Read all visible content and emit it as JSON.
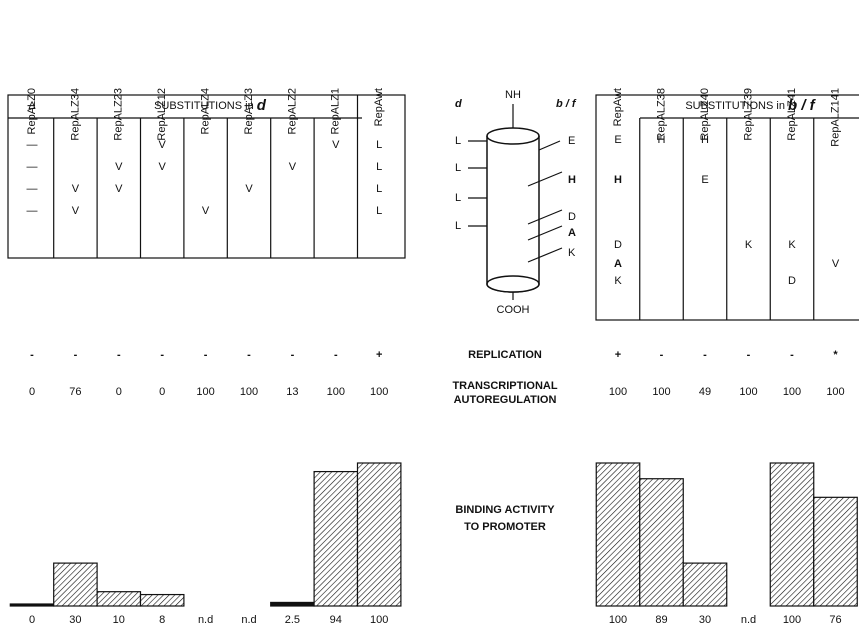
{
  "left_columns": [
    "RepALZ0",
    "RepALZ34",
    "RepALZ23",
    "RepALZ12",
    "RepALZ4",
    "RepALZ3",
    "RepALZ2",
    "RepALZ1",
    "RepAwt"
  ],
  "left_table": {
    "delta": "Δ",
    "header": "SUBSTITUTIONS in ",
    "header_em": "d",
    "cells": [
      [
        "—",
        "—",
        "—",
        "—"
      ],
      [
        null,
        null,
        "V",
        "V"
      ],
      [
        null,
        "V",
        "V",
        null
      ],
      [
        "V",
        "V",
        null,
        null
      ],
      [
        null,
        null,
        null,
        "V"
      ],
      [
        null,
        null,
        "V",
        null
      ],
      [
        null,
        "V",
        null,
        null
      ],
      [
        "V",
        null,
        null,
        null
      ],
      [
        "L",
        "L",
        "L",
        "L"
      ]
    ]
  },
  "right_columns": [
    "RepAwt",
    "RepALZ38",
    "RepALZ40",
    "RepALZ39",
    "RepALZ41",
    "RepALZ141"
  ],
  "right_table": {
    "header": "SUBSTITUTIONS in ",
    "header_em": "b / f",
    "cells": [
      [
        "E",
        "H",
        "D",
        "A",
        "K"
      ],
      [
        "H",
        null,
        null,
        null,
        null
      ],
      [
        "H",
        "E",
        null,
        null,
        null
      ],
      [
        null,
        null,
        "K",
        null,
        null
      ],
      [
        null,
        null,
        "K",
        null,
        "D"
      ],
      [
        null,
        null,
        null,
        "V",
        null
      ]
    ]
  },
  "helix": {
    "nh": "NH",
    "cooh": "COOH",
    "d": "d",
    "bf": "b / f",
    "left": [
      "L",
      "L",
      "L",
      "L"
    ],
    "right": [
      "E",
      "H",
      "D",
      "A",
      "K"
    ]
  },
  "replication": {
    "label": "REPLICATION",
    "left": [
      "-",
      "-",
      "-",
      "-",
      "-",
      "-",
      "-",
      "-",
      "+"
    ],
    "right": [
      "+",
      "-",
      "-",
      "-",
      "-",
      "*"
    ]
  },
  "autoregulation": {
    "label": [
      "TRANSCRIPTIONAL",
      "AUTOREGULATION"
    ],
    "left": [
      0,
      76,
      0,
      0,
      100,
      100,
      13,
      100,
      100
    ],
    "right": [
      100,
      100,
      49,
      100,
      100,
      100
    ]
  },
  "binding": {
    "label": [
      "BINDING  ACTIVITY",
      "TO PROMOTER"
    ],
    "left": [
      0,
      30,
      10,
      8,
      "n.d",
      "n.d",
      2.5,
      94,
      100
    ],
    "right": [
      100,
      89,
      30,
      "n.d",
      100,
      76
    ]
  }
}
